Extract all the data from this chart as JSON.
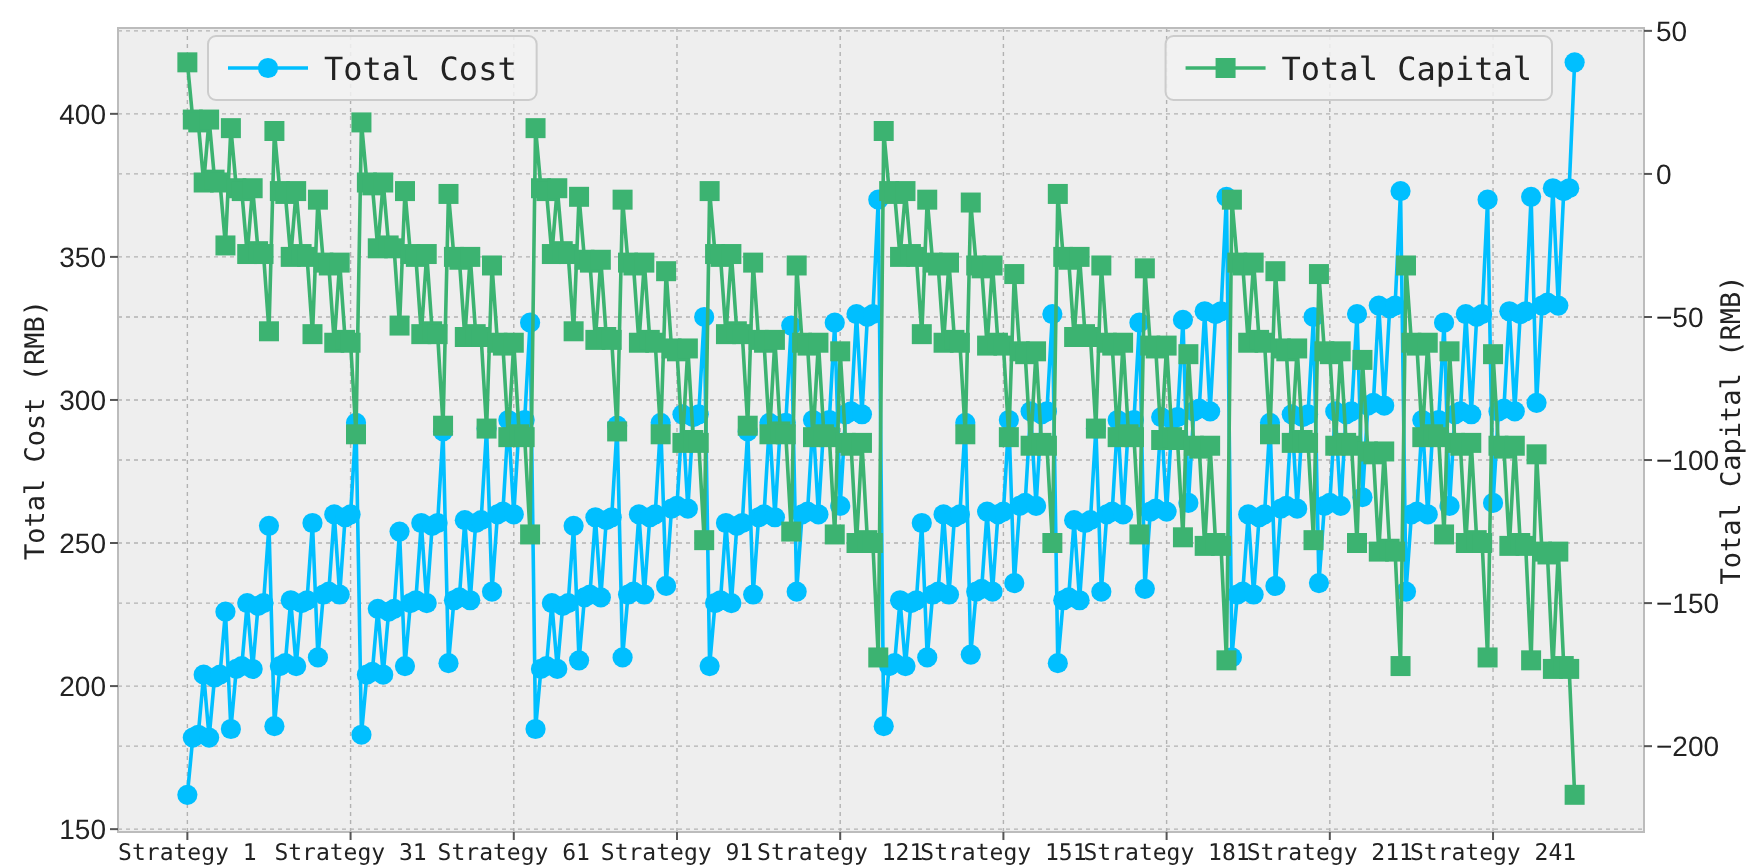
{
  "chart_data": {
    "type": "line",
    "categories": [
      "Strategy 1",
      null,
      null,
      null,
      null,
      null,
      null,
      null,
      null,
      null,
      null,
      null,
      null,
      null,
      null,
      null,
      null,
      null,
      null,
      null,
      null,
      null,
      null,
      null,
      null,
      null,
      null,
      null,
      null,
      null,
      "Strategy 31",
      null,
      null,
      null,
      null,
      null,
      null,
      null,
      null,
      null,
      null,
      null,
      null,
      null,
      null,
      null,
      null,
      null,
      null,
      null,
      null,
      null,
      null,
      null,
      null,
      null,
      null,
      null,
      null,
      null,
      "Strategy 61",
      null,
      null,
      null,
      null,
      null,
      null,
      null,
      null,
      null,
      null,
      null,
      null,
      null,
      null,
      null,
      null,
      null,
      null,
      null,
      null,
      null,
      null,
      null,
      null,
      null,
      null,
      null,
      null,
      null,
      "Strategy 91",
      null,
      null,
      null,
      null,
      null,
      null,
      null,
      null,
      null,
      null,
      null,
      null,
      null,
      null,
      null,
      null,
      null,
      null,
      null,
      null,
      null,
      null,
      null,
      null,
      null,
      null,
      null,
      null,
      null,
      "Strategy 121",
      null,
      null,
      null,
      null,
      null,
      null,
      null,
      null,
      null,
      null,
      null,
      null,
      null,
      null,
      null,
      null,
      null,
      null,
      null,
      null,
      null,
      null,
      null,
      null,
      null,
      null,
      null,
      null,
      null,
      "Strategy 151",
      null,
      null,
      null,
      null,
      null,
      null,
      null,
      null,
      null,
      null,
      null,
      null,
      null,
      null,
      null,
      null,
      null,
      null,
      null,
      null,
      null,
      null,
      null,
      null,
      null,
      null,
      null,
      null,
      null,
      "Strategy 181",
      null,
      null,
      null,
      null,
      null,
      null,
      null,
      null,
      null,
      null,
      null,
      null,
      null,
      null,
      null,
      null,
      null,
      null,
      null,
      null,
      null,
      null,
      null,
      null,
      null,
      null,
      null,
      null,
      null,
      "Strategy 211",
      null,
      null,
      null,
      null,
      null,
      null,
      null,
      null,
      null,
      null,
      null,
      null,
      null,
      null,
      null,
      null,
      null,
      null,
      null,
      null,
      null,
      null,
      null,
      null,
      null,
      null,
      null,
      null,
      null,
      "Strategy 241",
      null,
      null,
      null,
      null,
      null,
      null,
      null,
      null,
      null,
      null,
      null,
      null,
      null,
      null,
      null
    ],
    "ylabel": "Total Cost (RMB)",
    "y2label": "Total Capital (RMB)",
    "ylim": [
      149,
      430
    ],
    "yticks": [
      150,
      200,
      250,
      300,
      350,
      400
    ],
    "y2lim": [
      -230,
      51
    ],
    "y2ticks": [
      -200,
      -150,
      -100,
      -50,
      0,
      50
    ],
    "grid": true,
    "legend": "top",
    "line_style": "solid",
    "series": [
      {
        "name": "Total Cost",
        "color": "#00bfff",
        "marker": "circle",
        "values": [
          162,
          182,
          183,
          204,
          182,
          203,
          204,
          226,
          185,
          206,
          207,
          229,
          206,
          228,
          229,
          256,
          186,
          207,
          208,
          230,
          207,
          229,
          230,
          257,
          210,
          232,
          233,
          260,
          232,
          259,
          260,
          292,
          183,
          204,
          205,
          227,
          204,
          226,
          227,
          254,
          207,
          229,
          230,
          257,
          229,
          256,
          257,
          289,
          208,
          230,
          231,
          258,
          230,
          257,
          258,
          290,
          233,
          260,
          261,
          293,
          260,
          292,
          293,
          327,
          185,
          206,
          207,
          229,
          206,
          228,
          229,
          256,
          209,
          231,
          232,
          259,
          231,
          258,
          259,
          291,
          210,
          232,
          233,
          260,
          232,
          259,
          260,
          292,
          235,
          262,
          263,
          295,
          262,
          294,
          295,
          329,
          207,
          229,
          230,
          257,
          229,
          256,
          257,
          289,
          232,
          259,
          260,
          292,
          259,
          291,
          292,
          326,
          233,
          260,
          261,
          293,
          260,
          292,
          293,
          327,
          263,
          295,
          296,
          330,
          295,
          329,
          330,
          370,
          186,
          207,
          208,
          230,
          207,
          229,
          230,
          257,
          210,
          232,
          233,
          260,
          232,
          259,
          260,
          292,
          211,
          233,
          234,
          261,
          233,
          260,
          261,
          293,
          236,
          263,
          264,
          296,
          263,
          295,
          296,
          330,
          208,
          230,
          231,
          258,
          230,
          257,
          258,
          290,
          233,
          260,
          261,
          293,
          260,
          292,
          293,
          327,
          234,
          261,
          262,
          294,
          261,
          293,
          294,
          328,
          264,
          296,
          297,
          331,
          296,
          330,
          331,
          371,
          210,
          232,
          233,
          260,
          232,
          259,
          260,
          292,
          235,
          262,
          263,
          295,
          262,
          294,
          295,
          329,
          236,
          263,
          264,
          296,
          263,
          295,
          296,
          330,
          266,
          298,
          299,
          333,
          298,
          332,
          333,
          373,
          233,
          260,
          261,
          293,
          260,
          292,
          293,
          327,
          263,
          295,
          296,
          330,
          295,
          329,
          330,
          370,
          264,
          296,
          297,
          331,
          296,
          330,
          331,
          371,
          299,
          333,
          334,
          374,
          333,
          373,
          374,
          418
        ]
      },
      {
        "name": "Total Capital",
        "color": "#3cb371",
        "marker": "square",
        "axis": "y2",
        "values": [
          39,
          19,
          18,
          -3,
          19,
          -2,
          -3,
          -25,
          16,
          -5,
          -6,
          -28,
          -5,
          -27,
          -28,
          -55,
          15,
          -6,
          -7,
          -29,
          -6,
          -28,
          -29,
          -56,
          -9,
          -31,
          -32,
          -59,
          -31,
          -58,
          -59,
          -91,
          18,
          -3,
          -4,
          -26,
          -3,
          -25,
          -26,
          -53,
          -6,
          -28,
          -29,
          -56,
          -28,
          -55,
          -56,
          -88,
          -7,
          -29,
          -30,
          -57,
          -29,
          -56,
          -57,
          -89,
          -32,
          -59,
          -60,
          -92,
          -59,
          -91,
          -92,
          -126,
          16,
          -5,
          -6,
          -28,
          -5,
          -27,
          -28,
          -55,
          -8,
          -30,
          -31,
          -58,
          -30,
          -57,
          -58,
          -90,
          -9,
          -31,
          -32,
          -59,
          -31,
          -58,
          -59,
          -91,
          -34,
          -61,
          -62,
          -94,
          -61,
          -93,
          -94,
          -128,
          -6,
          -28,
          -29,
          -56,
          -28,
          -55,
          -56,
          -88,
          -31,
          -58,
          -59,
          -91,
          -58,
          -90,
          -91,
          -125,
          -32,
          -59,
          -60,
          -92,
          -59,
          -91,
          -92,
          -126,
          -62,
          -94,
          -95,
          -129,
          -94,
          -128,
          -129,
          -169,
          15,
          -6,
          -7,
          -29,
          -6,
          -28,
          -29,
          -56,
          -9,
          -31,
          -32,
          -59,
          -31,
          -58,
          -59,
          -91,
          -10,
          -32,
          -33,
          -60,
          -32,
          -59,
          -60,
          -92,
          -35,
          -62,
          -63,
          -95,
          -62,
          -94,
          -95,
          -129,
          -7,
          -29,
          -30,
          -57,
          -29,
          -56,
          -57,
          -89,
          -32,
          -59,
          -60,
          -92,
          -59,
          -91,
          -92,
          -126,
          -33,
          -60,
          -61,
          -93,
          -60,
          -92,
          -93,
          -127,
          -63,
          -95,
          -96,
          -130,
          -95,
          -129,
          -130,
          -170,
          -9,
          -31,
          -32,
          -59,
          -31,
          -58,
          -59,
          -91,
          -34,
          -61,
          -62,
          -94,
          -61,
          -93,
          -94,
          -128,
          -35,
          -62,
          -63,
          -95,
          -62,
          -94,
          -95,
          -129,
          -65,
          -97,
          -98,
          -132,
          -97,
          -131,
          -132,
          -172,
          -32,
          -59,
          -60,
          -92,
          -59,
          -91,
          -92,
          -126,
          -62,
          -94,
          -95,
          -129,
          -94,
          -128,
          -129,
          -169,
          -63,
          -95,
          -96,
          -130,
          -95,
          -129,
          -130,
          -170,
          -98,
          -132,
          -133,
          -173,
          -132,
          -172,
          -173,
          -217
        ]
      }
    ]
  }
}
